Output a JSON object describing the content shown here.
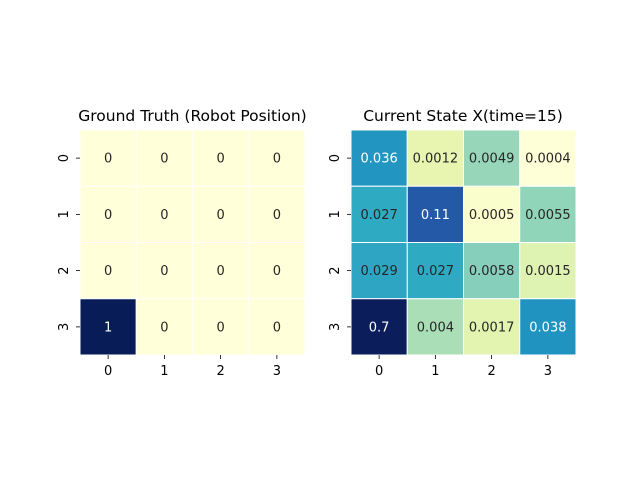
{
  "chart_data": [
    {
      "type": "heatmap",
      "title": "Ground Truth (Robot Position)",
      "xlabel": "",
      "ylabel": "",
      "x_ticks": [
        "0",
        "1",
        "2",
        "3"
      ],
      "y_ticks": [
        "0",
        "1",
        "2",
        "3"
      ],
      "values": [
        [
          0,
          0,
          0,
          0
        ],
        [
          0,
          0,
          0,
          0
        ],
        [
          0,
          0,
          0,
          0
        ],
        [
          1,
          0,
          0,
          0
        ]
      ],
      "labels": [
        [
          "0",
          "0",
          "0",
          "0"
        ],
        [
          "0",
          "0",
          "0",
          "0"
        ],
        [
          "0",
          "0",
          "0",
          "0"
        ],
        [
          "1",
          "0",
          "0",
          "0"
        ]
      ],
      "colormap": "YlGnBu",
      "colorbar": false
    },
    {
      "type": "heatmap",
      "title": "Current State X(time=15)",
      "xlabel": "",
      "ylabel": "",
      "x_ticks": [
        "0",
        "1",
        "2",
        "3"
      ],
      "y_ticks": [
        "0",
        "1",
        "2",
        "3"
      ],
      "values": [
        [
          0.036,
          0.0012,
          0.0049,
          0.0004
        ],
        [
          0.027,
          0.11,
          0.0005,
          0.0055
        ],
        [
          0.029,
          0.027,
          0.0058,
          0.0015
        ],
        [
          0.7,
          0.004,
          0.0017,
          0.038
        ]
      ],
      "labels": [
        [
          "0.036",
          "0.0012",
          "0.0049",
          "0.0004"
        ],
        [
          "0.027",
          "0.11",
          "0.0005",
          "0.0055"
        ],
        [
          "0.029",
          "0.027",
          "0.0058",
          "0.0015"
        ],
        [
          "0.7",
          "0.004",
          "0.0017",
          "0.038"
        ]
      ],
      "colormap": "YlGnBu",
      "colorbar": false,
      "cell_colors": [
        [
          "#2395c1",
          "#e7f5b1",
          "#97d6b9",
          "#feffd7"
        ],
        [
          "#2eaac3",
          "#2359a7",
          "#fafdcc",
          "#90d4b9"
        ],
        [
          "#2da5c3",
          "#2eaac3",
          "#85cfbb",
          "#def2b2"
        ],
        [
          "#0b1e5b",
          "#aadeb7",
          "#e3f4b1",
          "#2093c0"
        ]
      ]
    }
  ],
  "colors": {
    "high": "#081d58",
    "low": "#ffffd9",
    "dark_text": "#262626",
    "light_text": "#ffffff",
    "cell_border": "#ffffff"
  }
}
